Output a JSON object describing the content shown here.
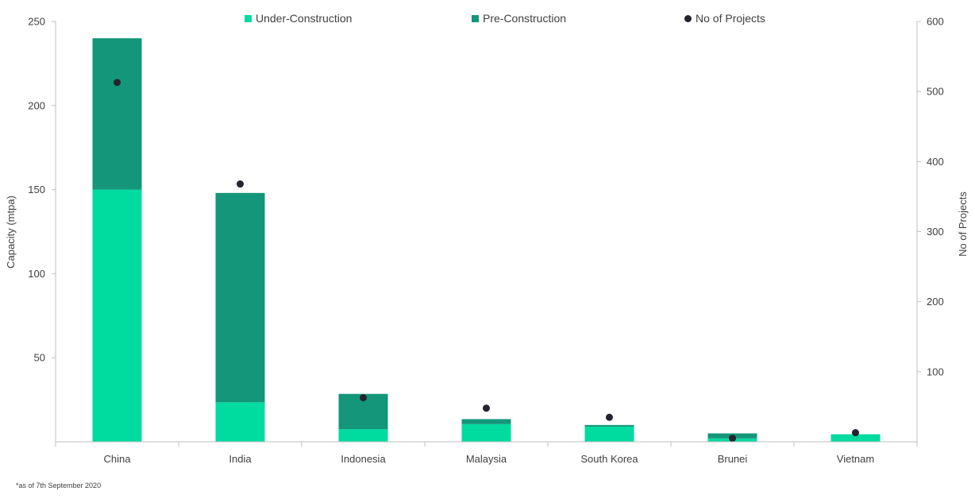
{
  "chart_data": {
    "type": "bar",
    "stacked": true,
    "categories": [
      "China",
      "India",
      "Indonesia",
      "Malaysia",
      "South Korea",
      "Brunei",
      "Vietnam"
    ],
    "series": [
      {
        "name": "Under-Construction",
        "axis": "left",
        "color": "#00DBA0",
        "values": [
          150,
          23.5,
          7.5,
          10.5,
          9,
          2,
          4.5
        ]
      },
      {
        "name": "Pre-Construction",
        "axis": "left",
        "color": "#13967A",
        "values": [
          90,
          124.5,
          21,
          3,
          1,
          3,
          0
        ]
      },
      {
        "name": "No of Projects",
        "axis": "right",
        "type": "scatter",
        "color": "#23242E",
        "values": [
          513,
          368,
          63,
          48,
          35,
          5,
          13
        ]
      }
    ],
    "ylabel": "Capacity (mtpa)",
    "y2label": "No of Projects",
    "ylim": [
      0,
      250
    ],
    "y2lim": [
      0,
      600
    ],
    "yticks": [
      "50",
      "100",
      "150",
      "200",
      "250"
    ],
    "y2ticks": [
      "100",
      "200",
      "300",
      "400",
      "500",
      "600"
    ],
    "legend_position": "top",
    "grid": false
  },
  "footnote": "*as of 7th September 2020"
}
